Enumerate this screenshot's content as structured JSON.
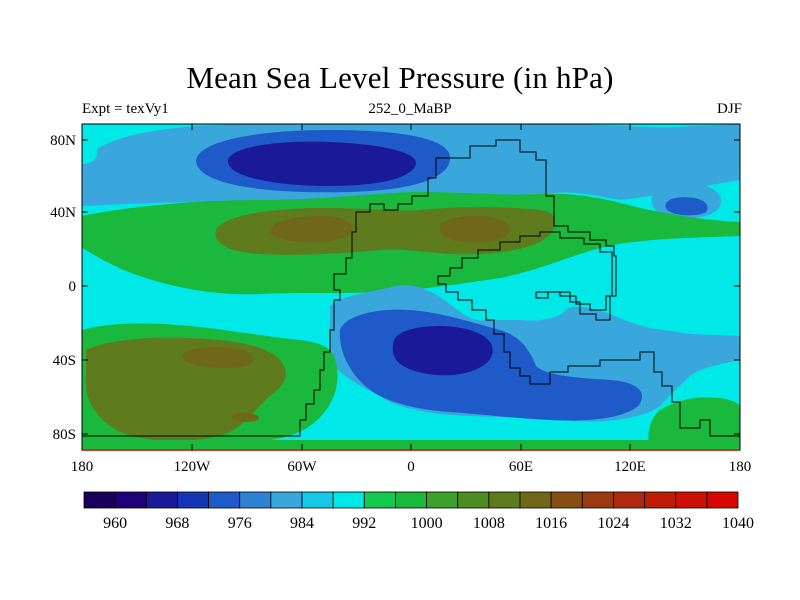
{
  "title": "Mean Sea Level Pressure (in hPa)",
  "subtitle_left": "Expt = texVy1",
  "subtitle_center": "252_0_MaBP",
  "subtitle_right": "DJF",
  "lat_ticks": [
    "80N",
    "40N",
    "0",
    "40S",
    "80S"
  ],
  "lon_ticks": [
    "180",
    "120W",
    "60W",
    "0",
    "60E",
    "120E",
    "180"
  ],
  "colorbar": {
    "labels": [
      "960",
      "968",
      "976",
      "984",
      "992",
      "1000",
      "1008",
      "1016",
      "1024",
      "1032",
      "1040"
    ],
    "colors": [
      "#19005a",
      "#1f0078",
      "#1a1a98",
      "#1536b4",
      "#1e5ac8",
      "#2d82d2",
      "#3aa7dc",
      "#14c8e6",
      "#00e8e8",
      "#14c850",
      "#1ab83c",
      "#3ea02a",
      "#4e8c22",
      "#5e7c1e",
      "#6e6818",
      "#864e14",
      "#9a3a10",
      "#ad280c",
      "#bf1c08",
      "#cc1004",
      "#d80600"
    ]
  },
  "field_colors": {
    "cyan": "#00e8e8",
    "lightblue": "#3aa7dc",
    "blue": "#1e5ac8",
    "darkblue": "#1a1a98",
    "green": "#1ab83c",
    "olive": "#5e7c1e",
    "brown": "#6e6818"
  }
}
